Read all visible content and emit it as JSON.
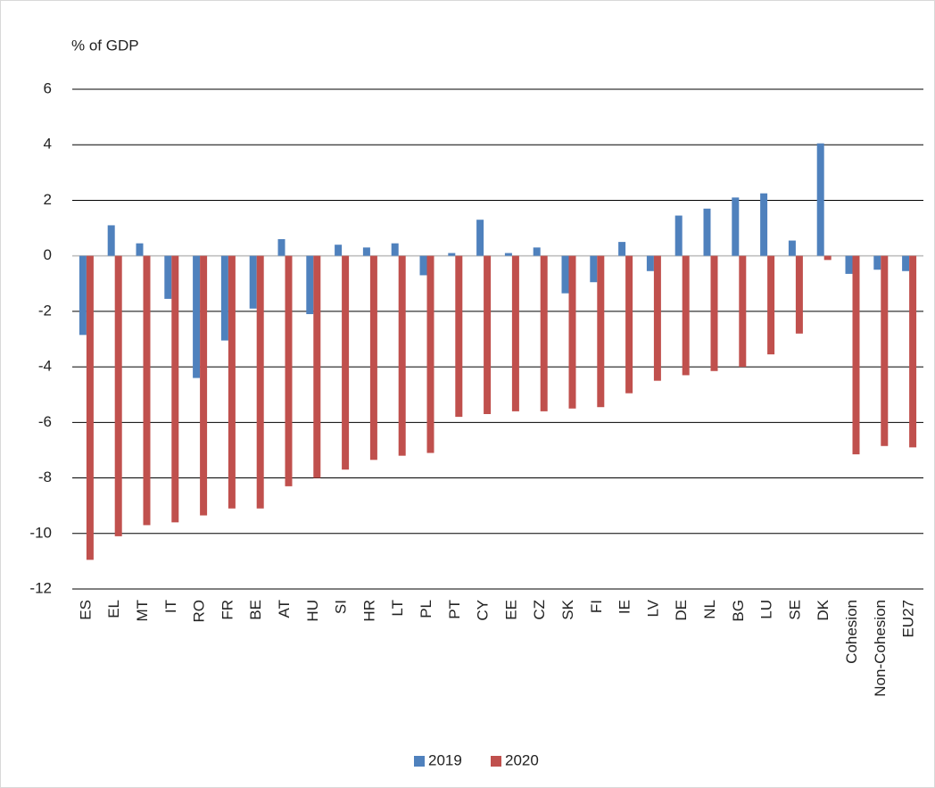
{
  "chart_data": {
    "type": "bar",
    "y_label": "% of GDP",
    "categories": [
      "ES",
      "EL",
      "MT",
      "IT",
      "RO",
      "FR",
      "BE",
      "AT",
      "HU",
      "SI",
      "HR",
      "LT",
      "PL",
      "PT",
      "CY",
      "EE",
      "CZ",
      "SK",
      "FI",
      "IE",
      "LV",
      "DE",
      "NL",
      "BG",
      "LU",
      "SE",
      "DK",
      "Cohesion",
      "Non-Cohesion",
      "EU27"
    ],
    "series": [
      {
        "name": "2019",
        "color": "#4f81bd",
        "values": [
          -2.85,
          1.1,
          0.45,
          -1.55,
          -4.4,
          -3.05,
          -1.9,
          0.6,
          -2.1,
          0.4,
          0.3,
          0.45,
          -0.7,
          0.1,
          1.3,
          0.1,
          0.3,
          -1.35,
          -0.95,
          0.5,
          -0.55,
          1.45,
          1.7,
          2.1,
          2.25,
          0.55,
          4.05,
          -0.65,
          -0.5,
          -0.55
        ]
      },
      {
        "name": "2020",
        "color": "#c0504d",
        "values": [
          -10.95,
          -10.1,
          -9.7,
          -9.6,
          -9.35,
          -9.1,
          -9.1,
          -8.3,
          -8.0,
          -7.7,
          -7.35,
          -7.2,
          -7.1,
          -5.8,
          -5.7,
          -5.6,
          -5.6,
          -5.5,
          -5.45,
          -4.95,
          -4.5,
          -4.3,
          -4.15,
          -4.0,
          -3.55,
          -2.8,
          -0.15,
          -7.15,
          -6.85,
          -6.9
        ]
      }
    ],
    "ylim": [
      -12,
      6
    ],
    "yticks": [
      -12,
      -10,
      -8,
      -6,
      -4,
      -2,
      0,
      2,
      4,
      6
    ],
    "grid": true,
    "legend": "bottom"
  }
}
